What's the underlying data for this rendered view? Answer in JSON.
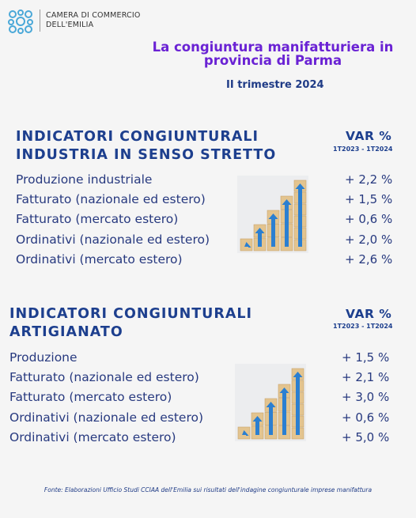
{
  "header": {
    "logo_line1": "CAMERA DI COMMERCIO",
    "logo_line2": "DELL'EMILIA",
    "title_line1": "La congiuntura manifatturiera in",
    "title_line2": "provincia di Parma",
    "subtitle": "II trimestre 2024"
  },
  "sections": [
    {
      "heading_line1": "INDICATORI CONGIUNTURALI",
      "heading_line2": "INDUSTRIA IN SENSO STRETTO",
      "var_header": "VAR %",
      "period": "1T2023 - 1T2024",
      "rows": [
        [
          "Produzione industriale",
          "+ 2,2 %"
        ],
        [
          "Fatturato (nazionale ed estero)",
          "+ 1,5  %"
        ],
        [
          "Fatturato (mercato estero)",
          "+ 0,6 %"
        ],
        [
          "Ordinativi (nazionale ed estero)",
          "+ 2,0 %"
        ],
        [
          "Ordinativi (mercato estero)",
          "+ 2,6 %"
        ]
      ]
    },
    {
      "heading_line1": "INDICATORI CONGIUNTURALI",
      "heading_line2": "ARTIGIANATO",
      "var_header": "VAR %",
      "period": "1T2023 - 1T2024",
      "rows": [
        [
          "Produzione",
          "+ 1,5 %"
        ],
        [
          "Fatturato (nazionale ed estero)",
          "+ 2,1 %"
        ],
        [
          "Fatturato (mercato estero)",
          "+ 3,0 %"
        ],
        [
          "Ordinativi (nazionale ed estero)",
          "+ 0,6 %"
        ],
        [
          "Ordinativi (mercato estero)",
          "+ 5,0 %"
        ]
      ]
    }
  ],
  "footer": "Fonte: Elaborazioni Ufficio Studi CCIAA dell'Emilia sui risultati dell'indagine congiunturale imprese manifattura"
}
